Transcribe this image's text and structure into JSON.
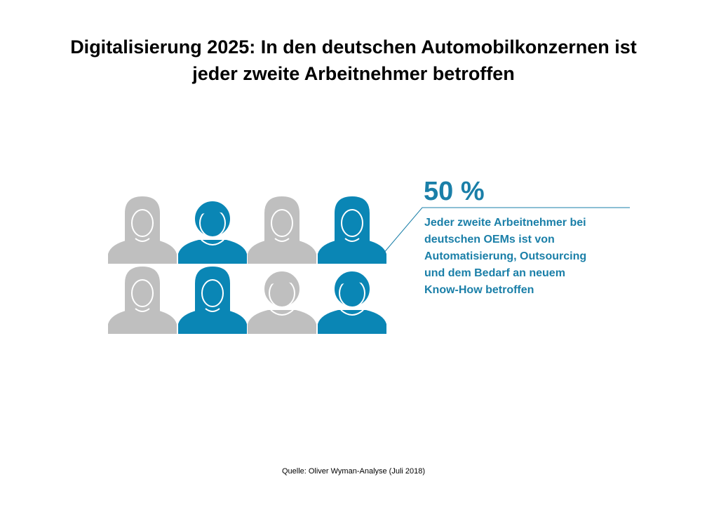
{
  "title_lines": [
    "Digitalisierung 2025: In den deutschen Automobilkonzernen ist",
    "jeder zweite Arbeitnehmer betroffen"
  ],
  "callout": {
    "value": "50 %",
    "text_lines": [
      "Jeder zweite Arbeitnehmer bei",
      "deutschen OEMs ist von",
      "Automatisierung, Outsourcing",
      "und dem Bedarf an neuem",
      "Know-How betroffen"
    ]
  },
  "source": "Quelle: Oliver Wyman-Analyse (Juli 2018)",
  "colors": {
    "affected": "#0a86b5",
    "unaffected": "#bfbfbf",
    "accent": "#1a7fa8"
  },
  "chart_data": {
    "type": "pictogram",
    "total": 8,
    "affected": 4,
    "share_percent": 50,
    "rows": [
      [
        "female",
        "male",
        "female",
        "female"
      ],
      [
        "female",
        "female",
        "male",
        "male"
      ]
    ],
    "affected_pattern": [
      [
        false,
        true,
        false,
        true
      ],
      [
        false,
        true,
        false,
        true
      ]
    ]
  }
}
